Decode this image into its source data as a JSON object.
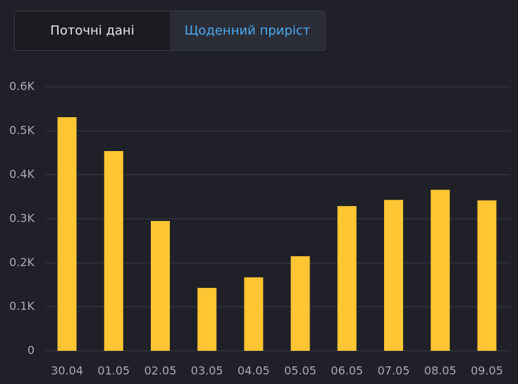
{
  "tabs": [
    "Поточні дані",
    "Щоденний приріст"
  ],
  "chart_data": {
    "type": "bar",
    "categories": [
      "30.04",
      "01.05",
      "02.05",
      "03.05",
      "04.05",
      "05.05",
      "06.05",
      "07.05",
      "08.05",
      "09.05"
    ],
    "values": [
      531,
      454,
      295,
      143,
      167,
      215,
      329,
      343,
      366,
      342
    ],
    "color": "#ffc533",
    "ylim": [
      0,
      600
    ],
    "yticks": [
      0,
      {
        "value": 100,
        "label": "0.1K"
      },
      {
        "value": 200,
        "label": "0.2K"
      },
      {
        "value": 300,
        "label": "0.3K"
      },
      {
        "value": 400,
        "label": "0.4K"
      },
      {
        "value": 500,
        "label": "0.5K"
      },
      {
        "value": 600,
        "label": "0.6K"
      }
    ],
    "grid": true
  }
}
